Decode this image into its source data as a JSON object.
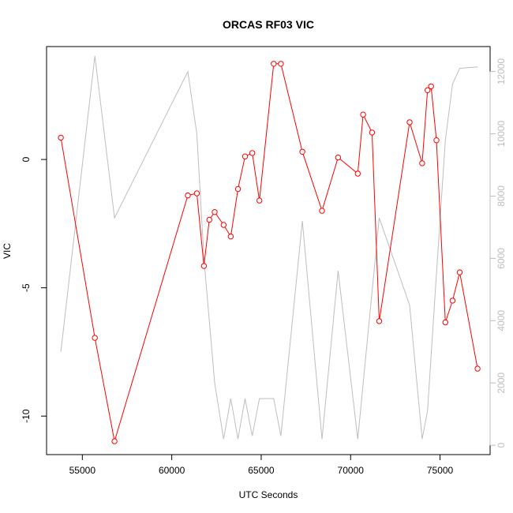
{
  "chart_data": {
    "type": "line",
    "title": "ORCAS RF03 VIC",
    "xlabel": "UTC Seconds",
    "ylabel": "VIC",
    "xlim": [
      53000,
      77800
    ],
    "ylim": [
      -11.5,
      4.4
    ],
    "y2lim": [
      -300,
      12800
    ],
    "x_ticks": [
      55000,
      60000,
      65000,
      70000,
      75000
    ],
    "y_ticks": [
      -10,
      -5,
      0
    ],
    "y2_ticks": [
      0,
      2000,
      4000,
      6000,
      8000,
      10000,
      12000
    ],
    "colors": {
      "primary": "#ff0000",
      "secondary": "#bebebe",
      "axis": "#000000"
    },
    "series": [
      {
        "axis": "left",
        "style": "line-with-open-circles",
        "x": [
          53800,
          55700,
          56800,
          60900,
          61400,
          61800,
          62100,
          62400,
          62900,
          63300,
          63700,
          64100,
          64500,
          64900,
          65700,
          66100,
          67300,
          68400,
          69300,
          70400,
          70700,
          71200,
          71600,
          73300,
          74000,
          74300,
          74500,
          74800,
          75300,
          75700,
          76100,
          77100
        ],
        "y": [
          0.85,
          -6.95,
          -10.98,
          -1.4,
          -1.32,
          -4.15,
          -2.35,
          -2.05,
          -2.55,
          -3.0,
          -1.15,
          0.12,
          0.25,
          -1.6,
          3.73,
          3.73,
          0.3,
          -2.0,
          0.08,
          -0.55,
          1.75,
          1.05,
          -6.3,
          1.45,
          -0.15,
          2.7,
          2.85,
          0.75,
          -6.35,
          -5.5,
          -4.4,
          -8.15
        ]
      },
      {
        "axis": "right",
        "style": "line",
        "x": [
          53800,
          55700,
          56800,
          60900,
          61400,
          61800,
          62400,
          62900,
          63300,
          63700,
          64100,
          64500,
          64900,
          65700,
          66100,
          67300,
          68400,
          69300,
          70400,
          71600,
          73300,
          74000,
          74300,
          74800,
          75300,
          75700,
          76100,
          77100
        ],
        "y": [
          3000,
          12500,
          7300,
          12000,
          10000,
          6000,
          2000,
          200,
          1500,
          200,
          1500,
          300,
          1500,
          1500,
          300,
          7200,
          200,
          5600,
          200,
          7300,
          4500,
          200,
          1100,
          5500,
          9800,
          11600,
          12100,
          12150
        ]
      }
    ]
  }
}
